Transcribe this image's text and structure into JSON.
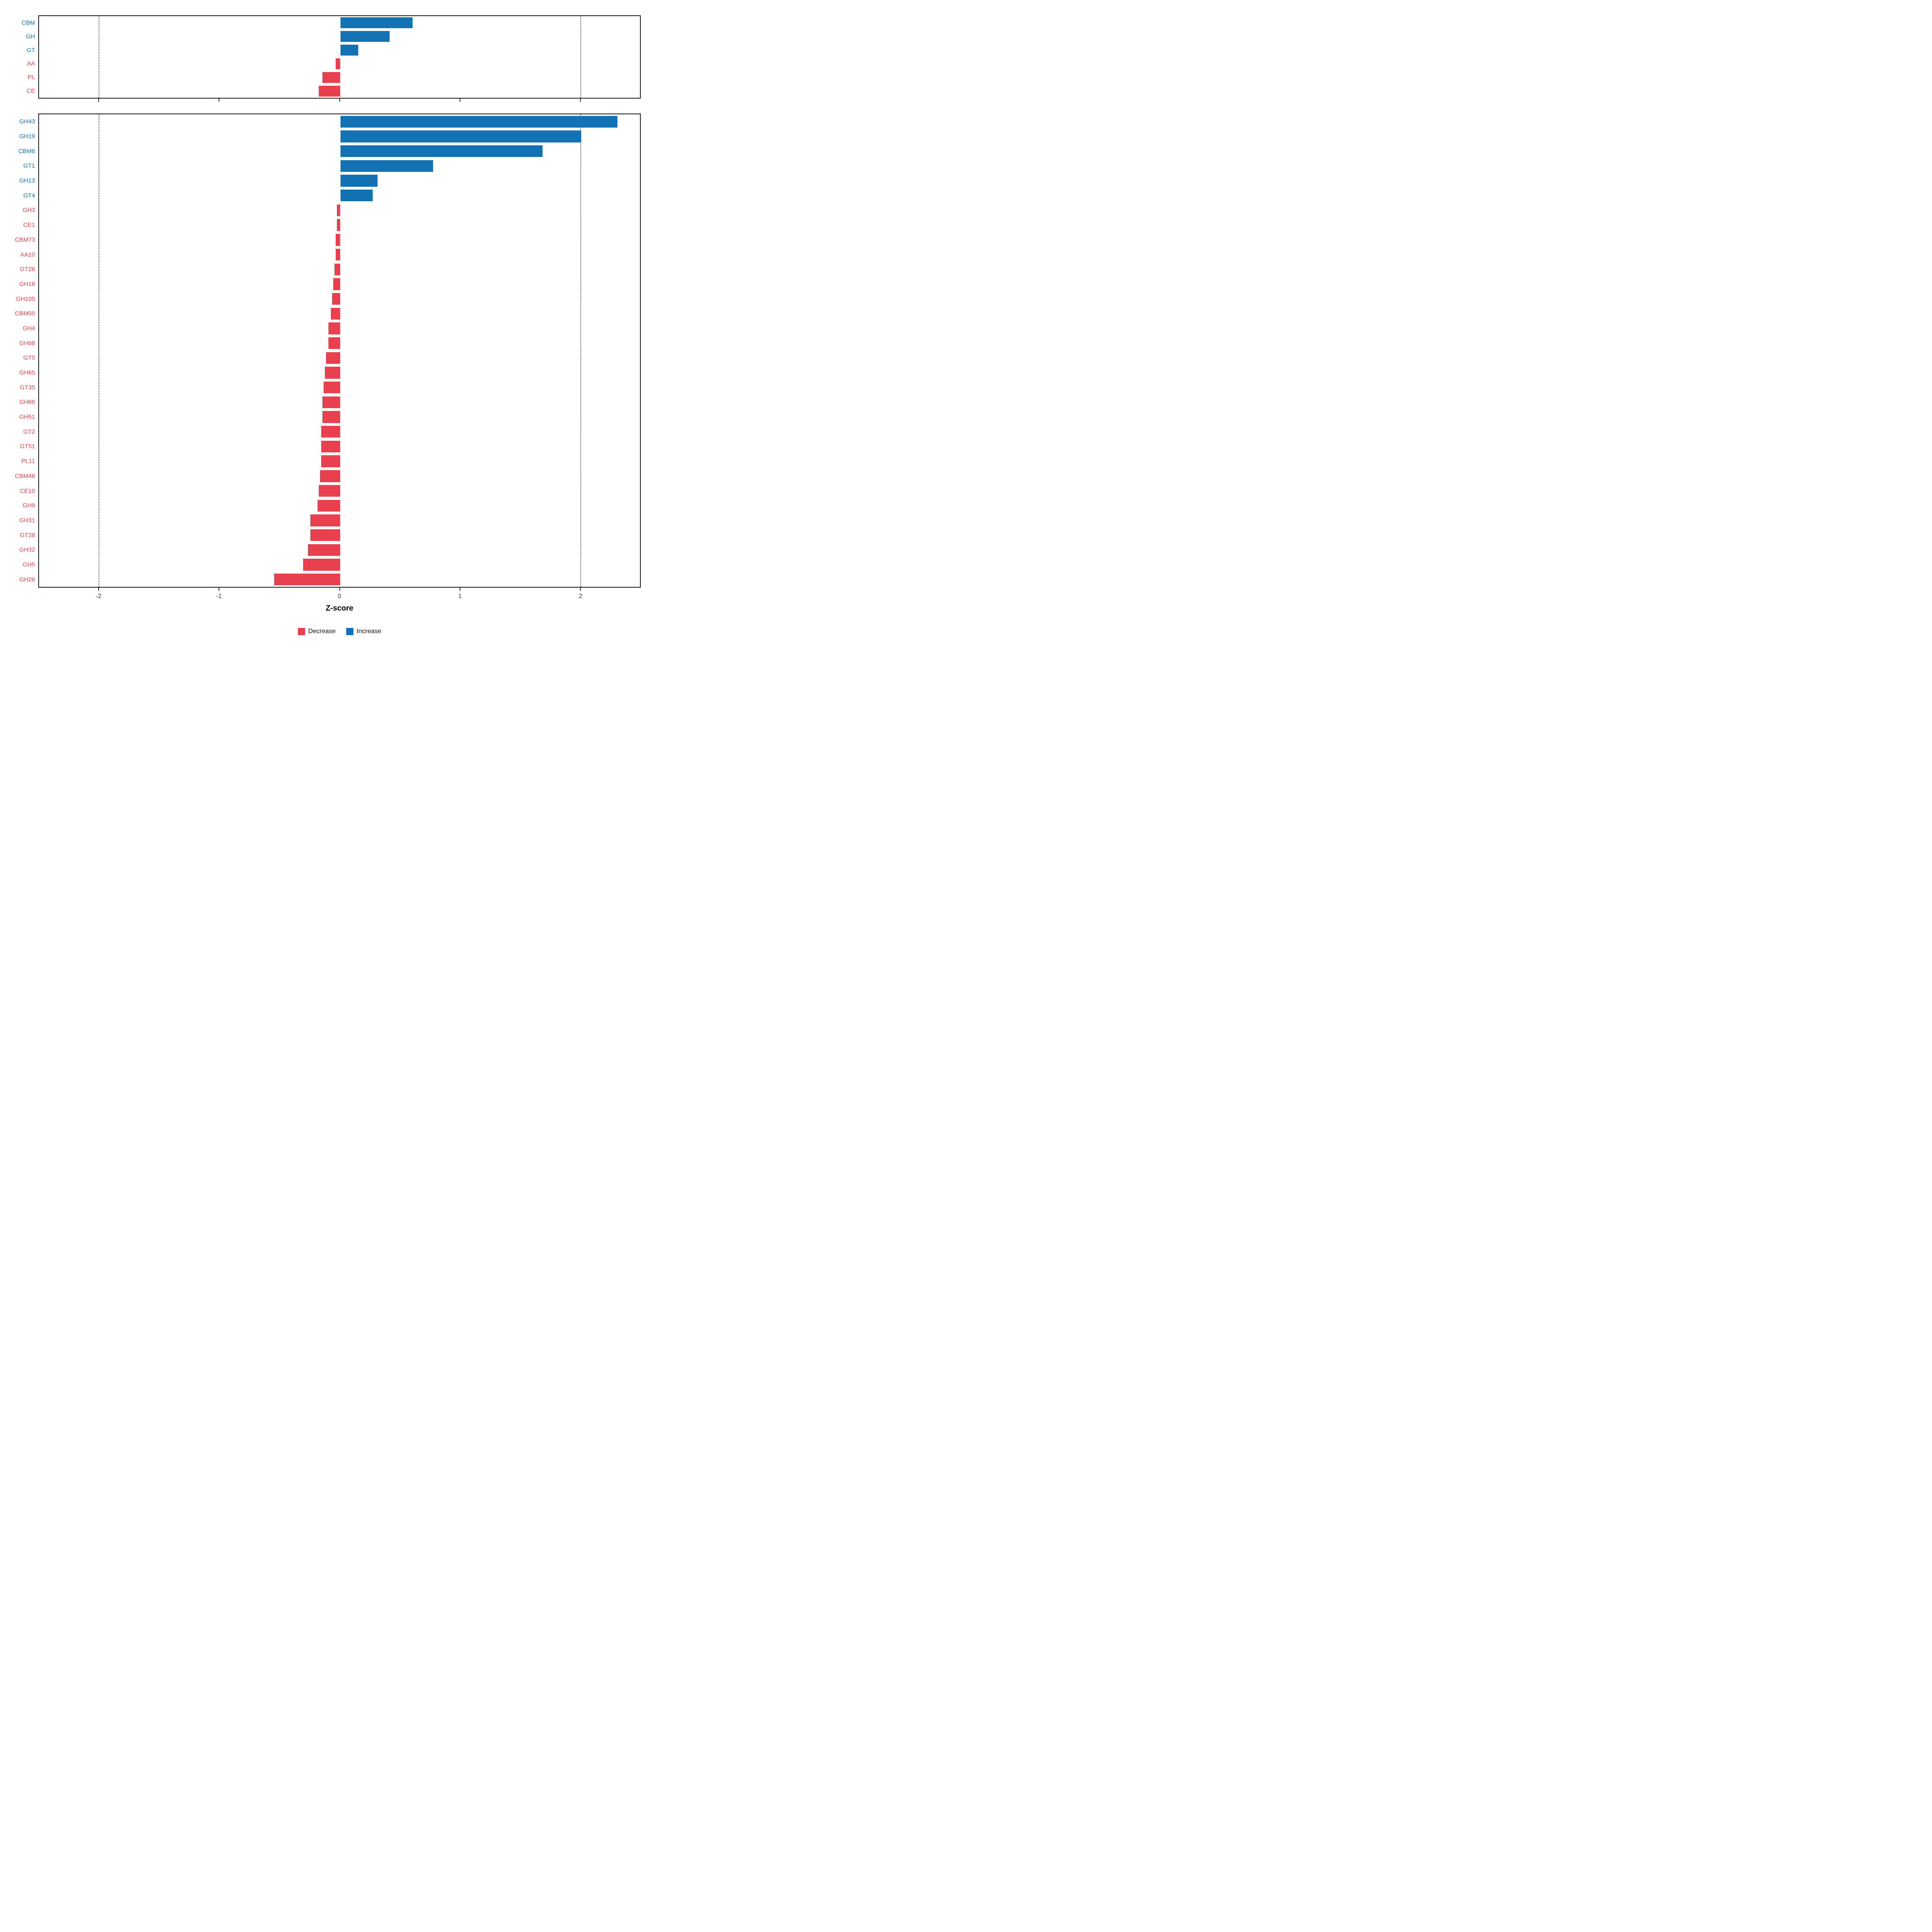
{
  "chart_data": {
    "type": "bar",
    "orientation": "horizontal",
    "title": "",
    "xlabel": "Z-score",
    "ylabel": "",
    "xlim": [
      -2.5,
      2.5
    ],
    "x_ticks": [
      "-2",
      "-1",
      "0",
      "1",
      "2"
    ],
    "x_tick_values": [
      -2,
      -1,
      0,
      1,
      2
    ],
    "gridlines_at": [
      -2,
      2
    ],
    "grid_style": "dotted",
    "legend_position": "bottom",
    "colors": {
      "decrease": "#E8404F",
      "increase": "#1372B4"
    },
    "legend": [
      {
        "label": "Decrease",
        "color": "#E8404F"
      },
      {
        "label": "Increase",
        "color": "#1372B4"
      }
    ],
    "panels": [
      {
        "name": "cazyme-classes",
        "rows": [
          {
            "label": "CBM",
            "value": 0.6
          },
          {
            "label": "GH",
            "value": 0.41
          },
          {
            "label": "GT",
            "value": 0.15
          },
          {
            "label": "AA",
            "value": -0.04
          },
          {
            "label": "PL",
            "value": -0.15
          },
          {
            "label": "CE",
            "value": -0.18
          }
        ]
      },
      {
        "name": "cazyme-families",
        "rows": [
          {
            "label": "GH43",
            "value": 2.3
          },
          {
            "label": "GH19",
            "value": 2.0
          },
          {
            "label": "CBM6",
            "value": 1.68
          },
          {
            "label": "GT1",
            "value": 0.77
          },
          {
            "label": "GH13",
            "value": 0.31
          },
          {
            "label": "GT4",
            "value": 0.27
          },
          {
            "label": "GH3",
            "value": -0.03
          },
          {
            "label": "CE1",
            "value": -0.03
          },
          {
            "label": "CBM73",
            "value": -0.04
          },
          {
            "label": "AA10",
            "value": -0.04
          },
          {
            "label": "GT26",
            "value": -0.05
          },
          {
            "label": "GH18",
            "value": -0.06
          },
          {
            "label": "GH105",
            "value": -0.07
          },
          {
            "label": "CBM50",
            "value": -0.08
          },
          {
            "label": "GH4",
            "value": -0.1
          },
          {
            "label": "GH68",
            "value": -0.1
          },
          {
            "label": "GT5",
            "value": -0.12
          },
          {
            "label": "GH65",
            "value": -0.13
          },
          {
            "label": "GT35",
            "value": -0.14
          },
          {
            "label": "GH66",
            "value": -0.15
          },
          {
            "label": "GH51",
            "value": -0.15
          },
          {
            "label": "GT2",
            "value": -0.16
          },
          {
            "label": "GT51",
            "value": -0.16
          },
          {
            "label": "PL11",
            "value": -0.16
          },
          {
            "label": "CBM48",
            "value": -0.17
          },
          {
            "label": "CE10",
            "value": -0.18
          },
          {
            "label": "GH9",
            "value": -0.19
          },
          {
            "label": "GH31",
            "value": -0.25
          },
          {
            "label": "GT28",
            "value": -0.25
          },
          {
            "label": "GH32",
            "value": -0.27
          },
          {
            "label": "GH5",
            "value": -0.31
          },
          {
            "label": "GH26",
            "value": -0.55
          }
        ]
      }
    ]
  }
}
